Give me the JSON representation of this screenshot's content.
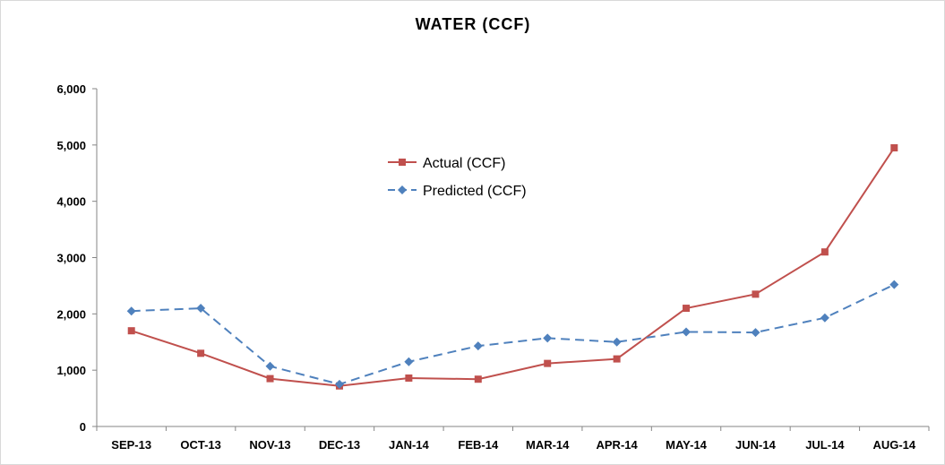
{
  "chart_data": {
    "type": "line",
    "title": "WATER (CCF)",
    "xlabel": "",
    "ylabel": "",
    "categories": [
      "SEP-13",
      "OCT-13",
      "NOV-13",
      "DEC-13",
      "JAN-14",
      "FEB-14",
      "MAR-14",
      "APR-14",
      "MAY-14",
      "JUN-14",
      "JUL-14",
      "AUG-14"
    ],
    "ylim": [
      0,
      6000
    ],
    "yticks": [
      0,
      1000,
      2000,
      3000,
      4000,
      5000,
      6000
    ],
    "ytick_labels": [
      "0",
      "1,000",
      "2,000",
      "3,000",
      "4,000",
      "5,000",
      "6,000"
    ],
    "grid": false,
    "legend_position": "center",
    "series": [
      {
        "name": "Actual (CCF)",
        "color": "#c0504d",
        "line_style": "solid",
        "marker": "square",
        "values": [
          1700,
          1300,
          850,
          720,
          860,
          840,
          1120,
          1200,
          2100,
          2350,
          3100,
          4950
        ]
      },
      {
        "name": "Predicted (CCF)",
        "color": "#4f81bd",
        "line_style": "dashed",
        "marker": "diamond",
        "values": [
          2050,
          2100,
          1070,
          750,
          1150,
          1430,
          1570,
          1500,
          1680,
          1670,
          1930,
          2520
        ]
      }
    ]
  }
}
